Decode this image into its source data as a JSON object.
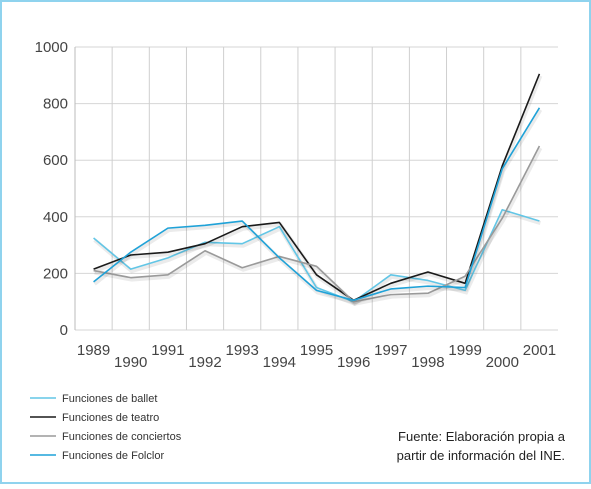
{
  "chart_data": {
    "type": "line",
    "categories": [
      "1989",
      "1990",
      "1991",
      "1992",
      "1993",
      "1994",
      "1995",
      "1996",
      "1997",
      "1998",
      "1999",
      "2000",
      "2001"
    ],
    "series": [
      {
        "name": "Funciones de ballet",
        "color": "#62c6e6",
        "values": [
          325,
          215,
          255,
          310,
          305,
          365,
          150,
          100,
          195,
          175,
          140,
          425,
          385
        ]
      },
      {
        "name": "Funciones de teatro",
        "color": "#1a1a1a",
        "values": [
          215,
          265,
          275,
          305,
          365,
          380,
          195,
          105,
          165,
          205,
          165,
          580,
          905
        ]
      },
      {
        "name": "Funciones de conciertos",
        "color": "#9a9a9a",
        "values": [
          210,
          185,
          195,
          280,
          220,
          260,
          225,
          100,
          125,
          130,
          190,
          395,
          650
        ]
      },
      {
        "name": "Funciones de Folclor",
        "color": "#1fa2d8",
        "values": [
          170,
          275,
          360,
          370,
          385,
          255,
          140,
          105,
          145,
          155,
          150,
          570,
          785
        ]
      }
    ],
    "ylim": [
      0,
      1000
    ],
    "yticks": [
      0,
      200,
      400,
      600,
      800,
      1000
    ],
    "grid": true,
    "annotation": [
      "Fuente: Elaboración propia a",
      "partir de información del INE."
    ]
  }
}
